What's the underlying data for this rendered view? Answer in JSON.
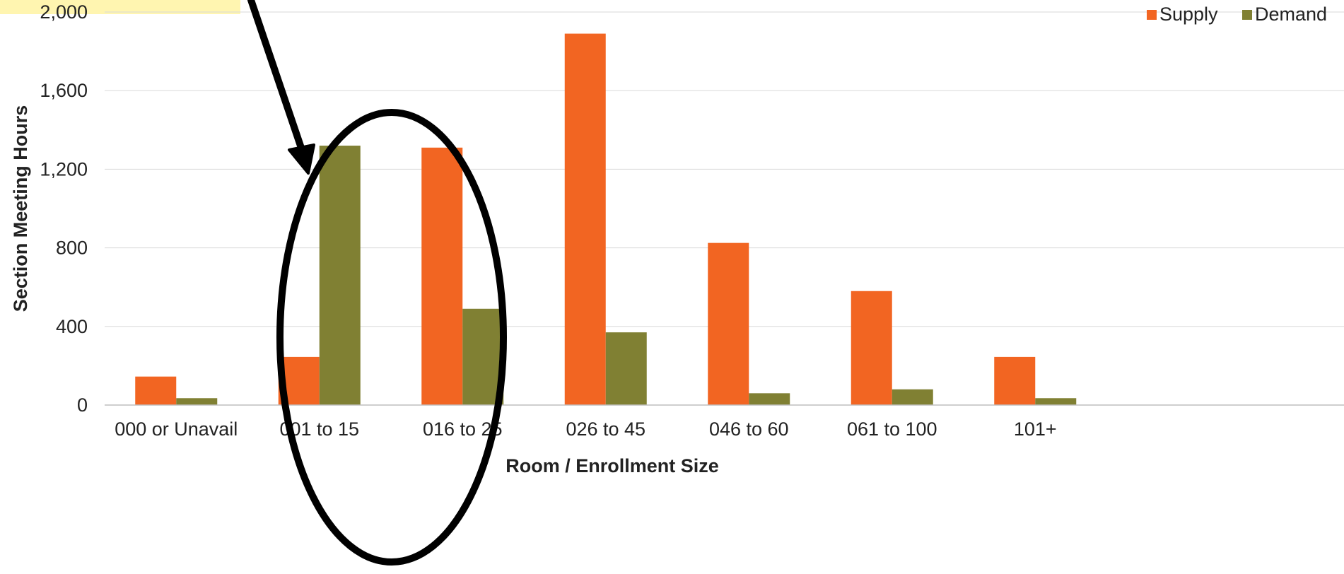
{
  "chart_data": {
    "type": "bar",
    "title": "",
    "xlabel": "Room / Enrollment Size",
    "ylabel": "Section Meeting Hours",
    "categories": [
      "000 or Unavail",
      "001 to 15",
      "016 to 25",
      "026 to 45",
      "046 to 60",
      "061 to 100",
      "101+"
    ],
    "series": [
      {
        "name": "Supply",
        "color": "#f26522",
        "values": [
          145,
          245,
          1310,
          1890,
          825,
          580,
          245
        ]
      },
      {
        "name": "Demand",
        "color": "#808033",
        "values": [
          35,
          1320,
          490,
          370,
          60,
          80,
          35
        ]
      }
    ],
    "yticks": [
      0,
      400,
      800,
      1200,
      1600,
      2000
    ],
    "ytick_labels": [
      "0",
      "400",
      "800",
      "1,200",
      "1,600",
      "2,000"
    ],
    "ylim": [
      0,
      2000
    ],
    "grid": true,
    "legend": "top-right",
    "annotation": {
      "shape": "ellipse",
      "target_category": "001 to 15",
      "arrow": true,
      "color": "#000000"
    },
    "highlight_color": "#fff5b0"
  }
}
